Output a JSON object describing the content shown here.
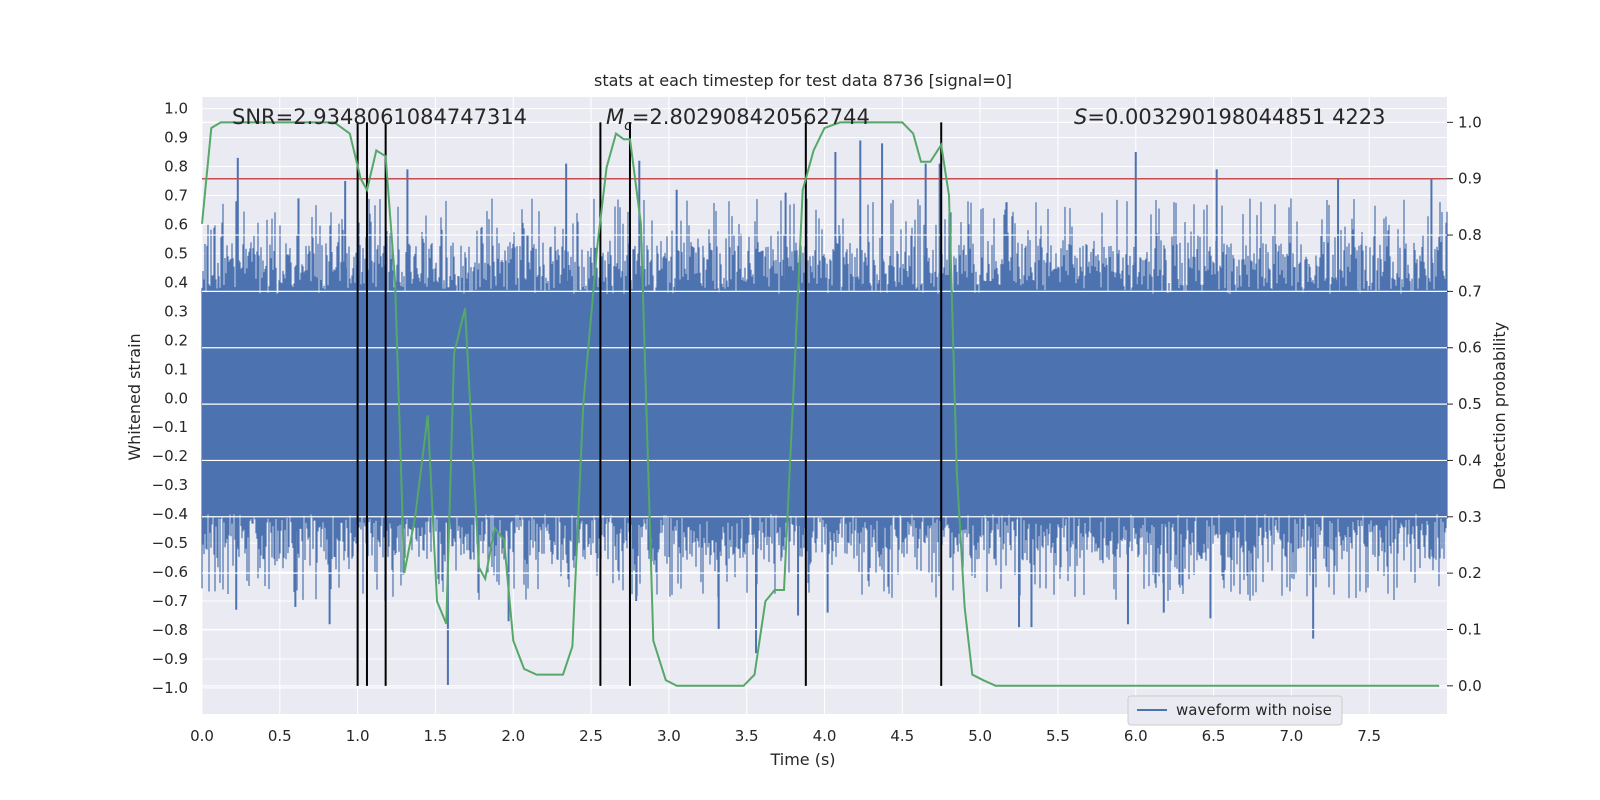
{
  "chart_data": {
    "type": "line",
    "title": "stats at each timestep for test data 8736 [signal=0]",
    "xlabel": "Time (s)",
    "ylabel_left": "Whitened strain",
    "ylabel_right": "Detection probability",
    "xlim": [
      0.0,
      8.0
    ],
    "ylim_left": [
      -1.09,
      1.04
    ],
    "ylim_right": [
      -0.05,
      1.045
    ],
    "x_ticks": [
      "0.0",
      "0.5",
      "1.0",
      "1.5",
      "2.0",
      "2.5",
      "3.0",
      "3.5",
      "4.0",
      "4.5",
      "5.0",
      "5.5",
      "6.0",
      "6.5",
      "7.0",
      "7.5"
    ],
    "y_ticks_left": [
      "1.0",
      "0.9",
      "0.8",
      "0.7",
      "0.6",
      "0.5",
      "0.4",
      "0.3",
      "0.2",
      "0.1",
      "0.0",
      "-0.1",
      "-0.2",
      "-0.3",
      "-0.4",
      "-0.5",
      "-0.6",
      "-0.7",
      "-0.8",
      "-0.9",
      "-1.0"
    ],
    "y_ticks_right": [
      "1.0",
      "0.9",
      "0.8",
      "0.7",
      "0.6",
      "0.5",
      "0.4",
      "0.3",
      "0.2",
      "0.1",
      "0.0"
    ],
    "grid": true,
    "annotations": {
      "snr": "SNR=2.9348061084747314",
      "mc_symbol": "M",
      "mc_sub": "c",
      "mc_value": "=2.802908420562744",
      "s_symbol": "S",
      "s_value": "=0.003290198044851 4223"
    },
    "threshold": {
      "value": 0.9,
      "axis": "right",
      "color": "#c44e52"
    },
    "vertical_lines": [
      1.0,
      1.06,
      1.18,
      2.56,
      2.75,
      3.88,
      4.75
    ],
    "series": [
      {
        "name": "waveform with noise",
        "axis": "left",
        "style": "noise",
        "color": "#4c72b0",
        "spikes_up": [
          [
            0.23,
            0.83
          ],
          [
            0.62,
            0.69
          ],
          [
            0.92,
            0.75
          ],
          [
            1.32,
            0.79
          ],
          [
            2.34,
            0.81
          ],
          [
            2.81,
            0.82
          ],
          [
            3.05,
            0.72
          ],
          [
            3.75,
            0.71
          ],
          [
            4.07,
            0.85
          ],
          [
            4.23,
            0.89
          ],
          [
            4.37,
            0.88
          ],
          [
            4.65,
            0.81
          ],
          [
            4.74,
            0.81
          ],
          [
            6.0,
            0.85
          ],
          [
            6.52,
            0.79
          ],
          [
            7.3,
            0.76
          ],
          [
            7.9,
            0.76
          ]
        ],
        "spikes_down": [
          [
            0.22,
            -0.73
          ],
          [
            0.6,
            -0.72
          ],
          [
            0.82,
            -0.78
          ],
          [
            1.58,
            -0.99
          ],
          [
            1.97,
            -0.77
          ],
          [
            2.75,
            -0.78
          ],
          [
            2.79,
            -0.7
          ],
          [
            3.32,
            -0.8
          ],
          [
            3.56,
            -0.88
          ],
          [
            3.83,
            -0.75
          ],
          [
            4.02,
            -0.74
          ],
          [
            5.25,
            -0.79
          ],
          [
            5.33,
            -0.79
          ],
          [
            5.95,
            -0.78
          ],
          [
            6.18,
            -0.74
          ],
          [
            6.48,
            -0.76
          ],
          [
            7.14,
            -0.83
          ]
        ]
      },
      {
        "name": "detection probability",
        "axis": "right",
        "color": "#55a868",
        "x": [
          0.0,
          0.06,
          0.12,
          0.3,
          0.6,
          0.85,
          0.95,
          1.02,
          1.06,
          1.12,
          1.18,
          1.24,
          1.3,
          1.37,
          1.45,
          1.51,
          1.57,
          1.62,
          1.69,
          1.78,
          1.82,
          1.88,
          1.94,
          2.0,
          2.07,
          2.15,
          2.25,
          2.32,
          2.38,
          2.45,
          2.54,
          2.6,
          2.66,
          2.71,
          2.75,
          2.82,
          2.9,
          2.98,
          3.05,
          3.15,
          3.3,
          3.48,
          3.55,
          3.62,
          3.68,
          3.74,
          3.8,
          3.86,
          3.93,
          4.0,
          4.1,
          4.3,
          4.5,
          4.57,
          4.62,
          4.68,
          4.75,
          4.8,
          4.85,
          4.9,
          4.95,
          5.02,
          5.1,
          5.5,
          6.0,
          6.5,
          7.0,
          7.5,
          7.95
        ],
        "y": [
          0.82,
          0.99,
          1.0,
          1.0,
          1.0,
          1.0,
          0.98,
          0.9,
          0.88,
          0.95,
          0.94,
          0.72,
          0.2,
          0.3,
          0.48,
          0.15,
          0.11,
          0.59,
          0.67,
          0.21,
          0.19,
          0.28,
          0.26,
          0.08,
          0.03,
          0.02,
          0.02,
          0.02,
          0.07,
          0.5,
          0.78,
          0.92,
          0.98,
          0.97,
          0.97,
          0.82,
          0.08,
          0.01,
          0.0,
          0.0,
          0.0,
          0.0,
          0.02,
          0.15,
          0.17,
          0.17,
          0.52,
          0.88,
          0.95,
          0.99,
          1.0,
          1.0,
          1.0,
          0.98,
          0.93,
          0.93,
          0.96,
          0.87,
          0.38,
          0.14,
          0.02,
          0.01,
          0.0,
          0.0,
          0.0,
          0.0,
          0.0,
          0.0,
          0.0
        ]
      }
    ],
    "legend": {
      "placement": "lower-right",
      "entries": [
        "waveform with noise"
      ]
    }
  }
}
